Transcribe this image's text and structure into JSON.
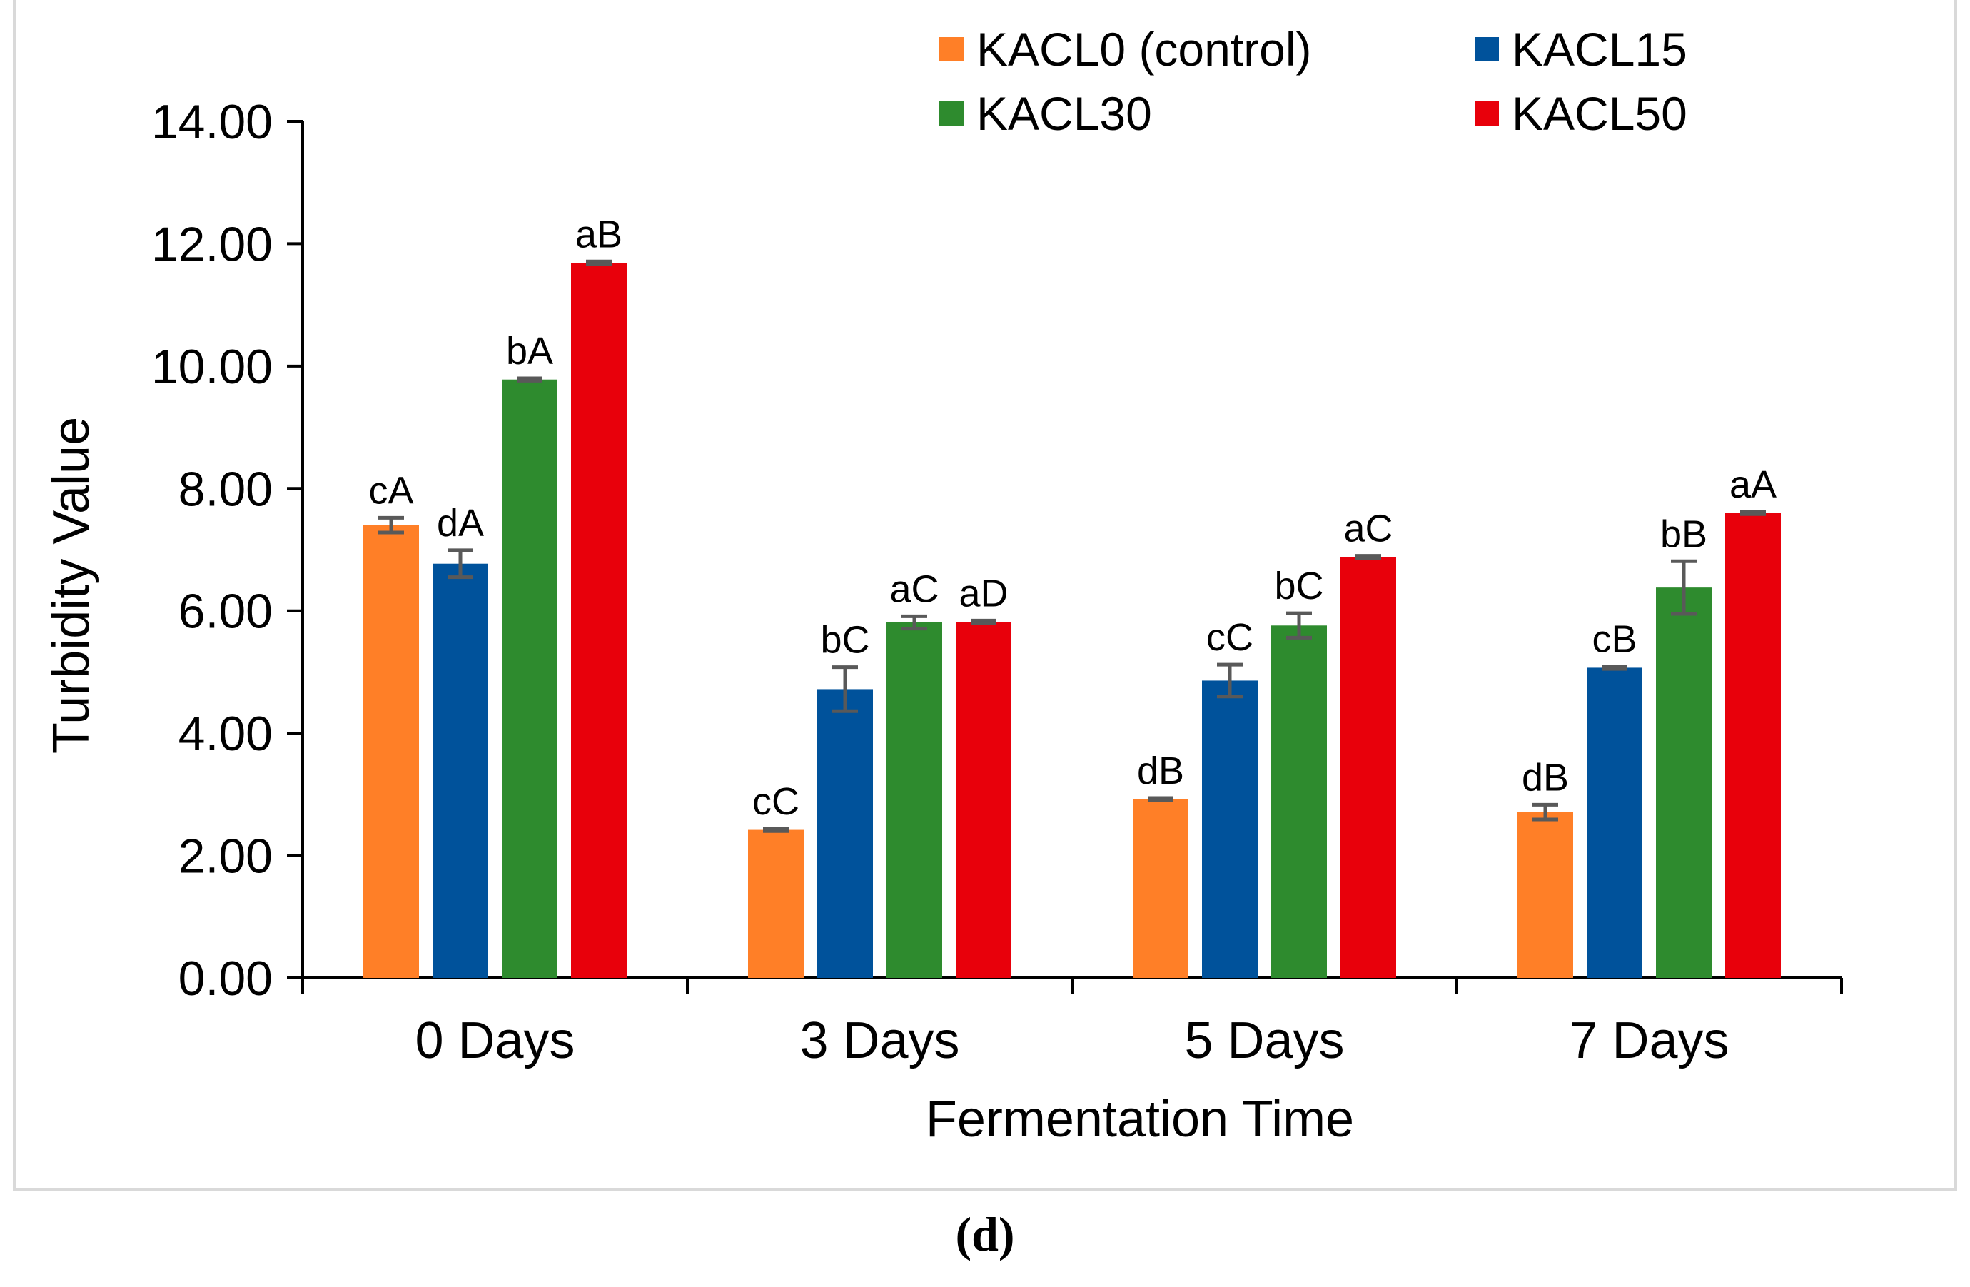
{
  "chart_data": {
    "type": "bar",
    "title": "",
    "xlabel": "Fermentation Time",
    "ylabel": "Turbidity Value",
    "ylim": [
      0,
      14
    ],
    "yticks": [
      "0.00",
      "2.00",
      "4.00",
      "6.00",
      "8.00",
      "10.00",
      "12.00",
      "14.00"
    ],
    "ytick_values": [
      0,
      2,
      4,
      6,
      8,
      10,
      12,
      14
    ],
    "categories": [
      "0 Days",
      "3 Days",
      "5 Days",
      "7 Days"
    ],
    "legend_position": "top-right",
    "series": [
      {
        "name": "KACL0 (control)",
        "color": "#FF7F27",
        "values": [
          7.4,
          2.42,
          2.92,
          2.71
        ],
        "errors": [
          0.12,
          0.02,
          0.02,
          0.12
        ],
        "labels": [
          "cA",
          "cC",
          "dB",
          "dB"
        ]
      },
      {
        "name": "KACL15",
        "color": "#00529B",
        "values": [
          6.77,
          4.72,
          4.86,
          5.07
        ],
        "errors": [
          0.22,
          0.36,
          0.26,
          0.02
        ],
        "labels": [
          "dA",
          "bC",
          "cC",
          "cB"
        ]
      },
      {
        "name": "KACL30",
        "color": "#2E8B2E",
        "values": [
          9.78,
          5.81,
          5.76,
          6.38
        ],
        "errors": [
          0.02,
          0.1,
          0.2,
          0.43
        ],
        "labels": [
          "bA",
          "aC",
          "bC",
          "bB"
        ]
      },
      {
        "name": "KACL50",
        "color": "#E8000B",
        "values": [
          11.69,
          5.82,
          6.88,
          7.6
        ],
        "errors": [
          0.02,
          0.02,
          0.02,
          0.02
        ],
        "labels": [
          "aB",
          "aD",
          "aC",
          "aA"
        ]
      }
    ]
  },
  "panel_label": "(d)"
}
